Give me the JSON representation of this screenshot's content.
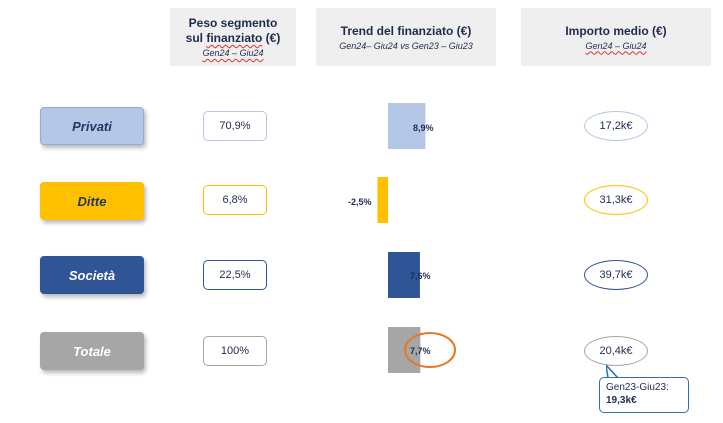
{
  "headers": {
    "peso": {
      "title_line1": "Peso segmento",
      "title_line2_pre": "sul ",
      "title_line2_u": "finanziato",
      "title_line2_post": " (€)",
      "subtitle": "Gen24 – Giu24"
    },
    "trend": {
      "title": "Trend del finanziato (€)",
      "subtitle": "Gen24– Giu24 vs Gen23 – Giu23"
    },
    "importo": {
      "title": "Importo medio (€)",
      "subtitle": "Gen24 – Giu24"
    }
  },
  "rows": [
    {
      "segment": "Privati",
      "peso": "70,9%",
      "trend_label": "8,9%",
      "importo": "17,2k€"
    },
    {
      "segment": "Ditte",
      "peso": "6,8%",
      "trend_label": "-2,5%",
      "importo": "31,3k€"
    },
    {
      "segment": "Società",
      "peso": "22,5%",
      "trend_label": "7,6%",
      "importo": "39,7k€"
    },
    {
      "segment": "Totale",
      "peso": "100%",
      "trend_label": "7,7%",
      "importo": "20,4k€"
    }
  ],
  "callout": {
    "line1": "Gen23-Giu23:",
    "line2": "19,3k€"
  },
  "colors": {
    "privati": "#b4c7e7",
    "ditte": "#ffc000",
    "societa": "#2f5597",
    "totale": "#a6a6a6",
    "highlight": "#e87722",
    "callout_border": "#2e6fb0"
  },
  "chart_data": {
    "type": "bar",
    "categories": [
      "Privati",
      "Ditte",
      "Società",
      "Totale"
    ],
    "series": [
      {
        "values": [
          8.9,
          -2.5,
          7.6,
          7.7
        ]
      }
    ]
  }
}
